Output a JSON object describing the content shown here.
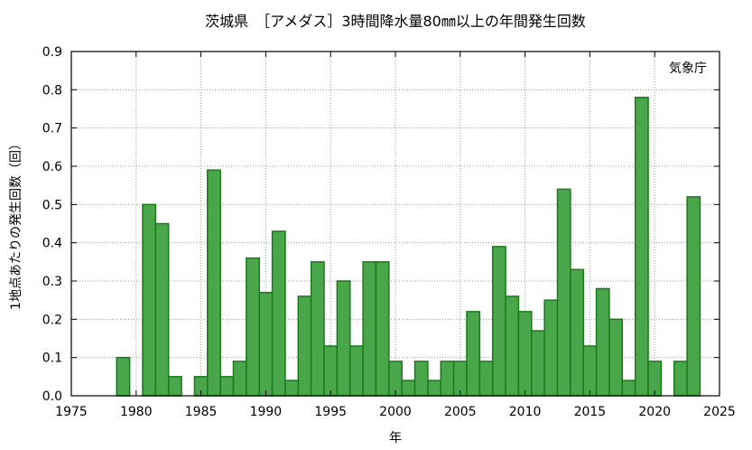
{
  "chart_data": {
    "type": "bar",
    "title": "茨城県　［アメダス］3時間降水量80㎜以上の年間発生回数",
    "xlabel": "年",
    "ylabel": "1地点あたりの発生回数（回）",
    "annotation": "気象庁",
    "xlim": [
      1975,
      2025
    ],
    "ylim": [
      0,
      0.9
    ],
    "x_ticks": [
      1975,
      1980,
      1985,
      1990,
      1995,
      2000,
      2005,
      2010,
      2015,
      2020,
      2025
    ],
    "y_ticks": [
      "0.0",
      "0.1",
      "0.2",
      "0.3",
      "0.4",
      "0.5",
      "0.6",
      "0.7",
      "0.8",
      "0.9"
    ],
    "grid": true,
    "bar_color": "#4aa64a",
    "bar_edge_color": "#1a7a1a",
    "series": [
      {
        "x": [
          1979,
          1981,
          1982,
          1983,
          1985,
          1986,
          1987,
          1988,
          1989,
          1990,
          1991,
          1992,
          1993,
          1994,
          1995,
          1996,
          1997,
          1998,
          1999,
          2000,
          2001,
          2002,
          2003,
          2004,
          2005,
          2006,
          2007,
          2008,
          2009,
          2010,
          2011,
          2012,
          2013,
          2014,
          2015,
          2016,
          2017,
          2018,
          2019,
          2020,
          2022,
          2023
        ],
        "values": [
          0.1,
          0.5,
          0.45,
          0.05,
          0.05,
          0.59,
          0.05,
          0.09,
          0.36,
          0.27,
          0.43,
          0.04,
          0.26,
          0.35,
          0.13,
          0.3,
          0.13,
          0.35,
          0.35,
          0.09,
          0.04,
          0.09,
          0.04,
          0.09,
          0.09,
          0.22,
          0.09,
          0.39,
          0.26,
          0.22,
          0.17,
          0.25,
          0.54,
          0.33,
          0.13,
          0.28,
          0.2,
          0.04,
          0.78,
          0.09,
          0.09,
          0.52
        ]
      }
    ]
  }
}
